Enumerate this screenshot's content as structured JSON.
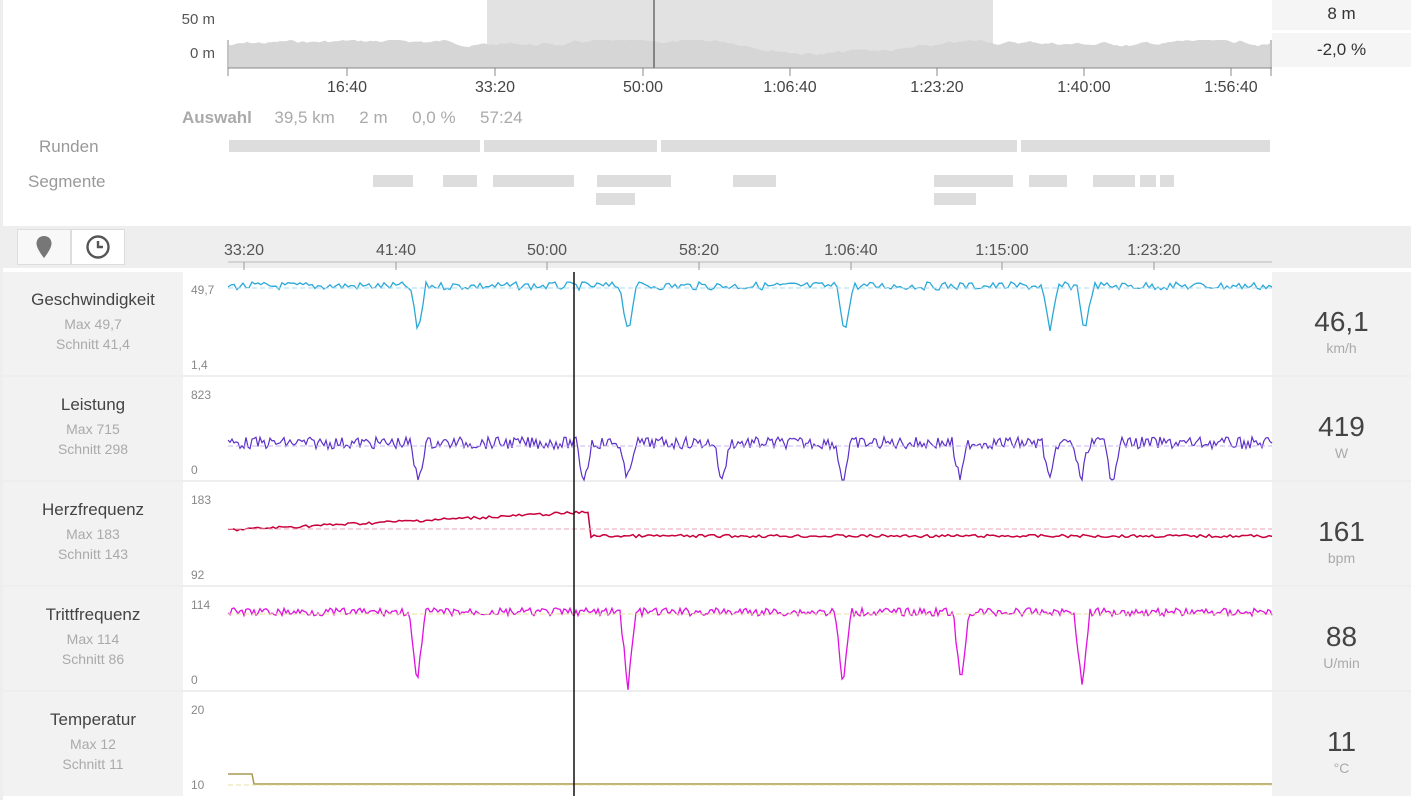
{
  "overview": {
    "elevation_axis": [
      "50 m",
      "0 m"
    ],
    "time_ticks": [
      "16:40",
      "33:20",
      "50:00",
      "1:06:40",
      "1:23:20",
      "1:40:00",
      "1:56:40"
    ],
    "readouts": {
      "elevation": "8 m",
      "grade": "-2,0 %"
    },
    "selection": {
      "label": "Auswahl",
      "distance": "39,5 km",
      "elevation": "2 m",
      "grade": "0,0 %",
      "duration": "57:24"
    },
    "rows": {
      "laps": "Runden",
      "segments": "Segmente"
    }
  },
  "toolbar": {
    "buttons": {
      "map": "map-pin-icon",
      "time": "clock-icon"
    },
    "time_ticks": [
      "33:20",
      "41:40",
      "50:00",
      "58:20",
      "1:06:40",
      "1:15:00",
      "1:23:20"
    ]
  },
  "metrics": [
    {
      "name": "Geschwindigkeit",
      "max": "Max 49,7",
      "avg": "Schnitt 41,4",
      "value": "46,1",
      "unit": "km/h",
      "ymax": "49,7",
      "ymin": "1,4",
      "color": "#2aa8d8"
    },
    {
      "name": "Leistung",
      "max": "Max 715",
      "avg": "Schnitt 298",
      "value": "419",
      "unit": "W",
      "ymax": "823",
      "ymin": "0",
      "color": "#5b2fc9"
    },
    {
      "name": "Herzfrequenz",
      "max": "Max 183",
      "avg": "Schnitt 143",
      "value": "161",
      "unit": "bpm",
      "ymax": "183",
      "ymin": "92",
      "color": "#c8003c"
    },
    {
      "name": "Trittfrequenz",
      "max": "Max 114",
      "avg": "Schnitt 86",
      "value": "88",
      "unit": "U/min",
      "ymax": "114",
      "ymin": "0",
      "color": "#e010e0"
    },
    {
      "name": "Temperatur",
      "max": "Max 12",
      "avg": "Schnitt 11",
      "value": "11",
      "unit": "°C",
      "ymax": "20",
      "ymin": "10",
      "color": "#a89a50"
    }
  ]
}
